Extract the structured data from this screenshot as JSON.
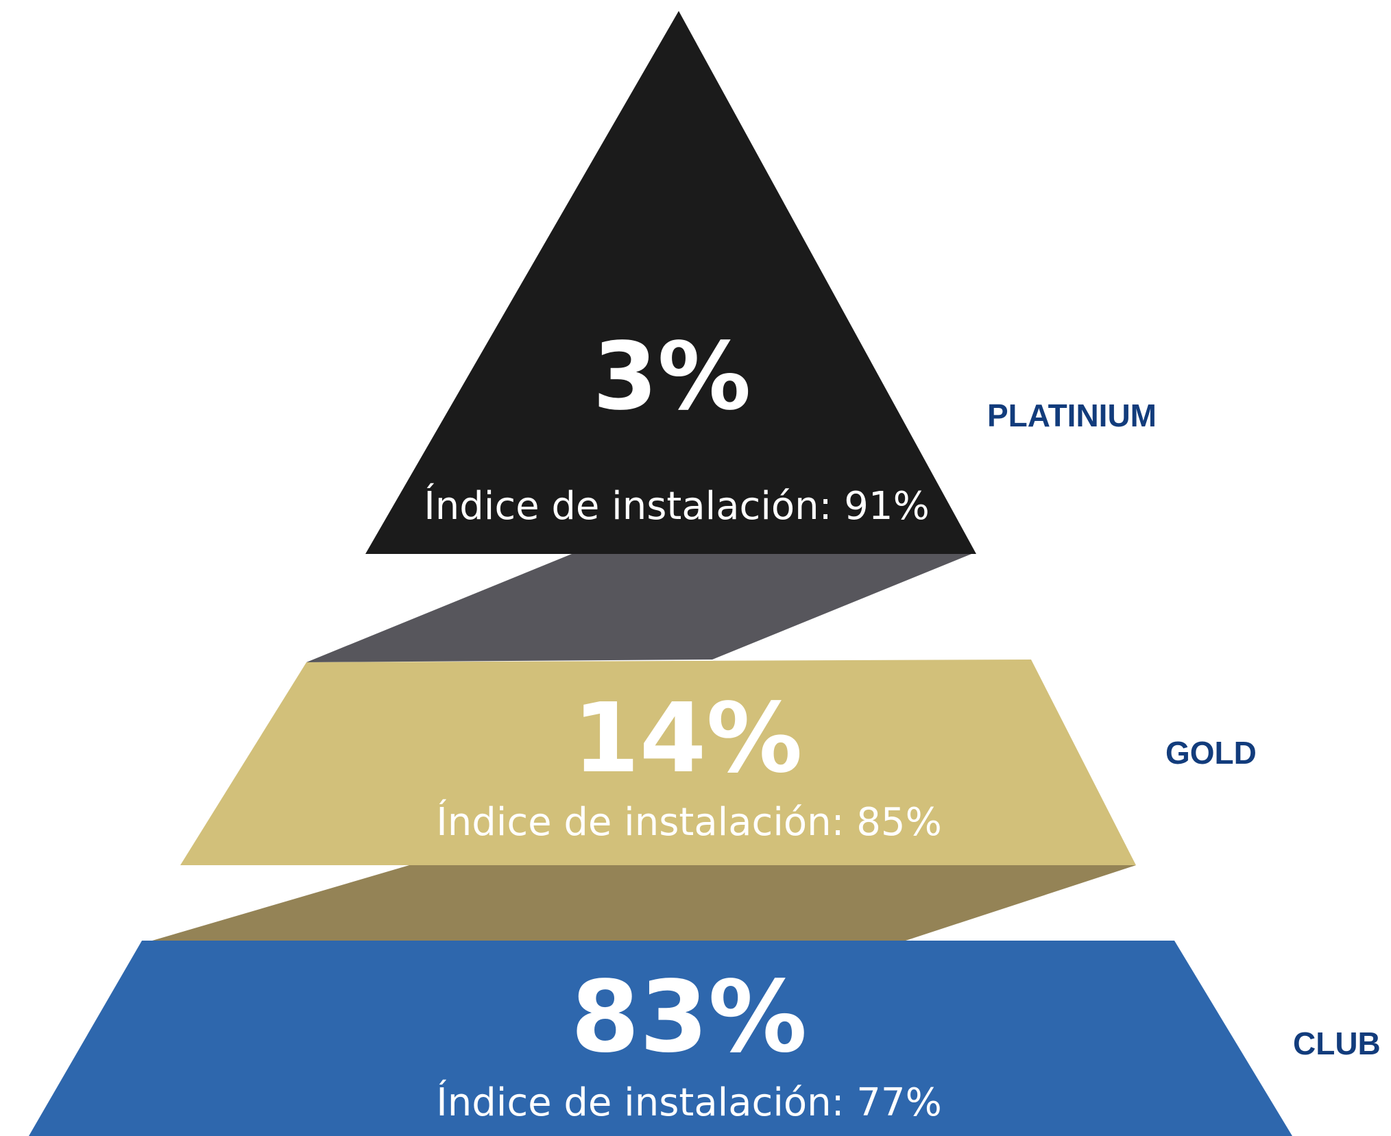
{
  "colors": {
    "platinium": "#1b1b1b",
    "platinium_side": "#57565c",
    "gold": "#d2c07a",
    "gold_side": "#948356",
    "club": "#2e67ad",
    "text_light": "#ffffff",
    "label": "#123c7c"
  },
  "tiers": [
    {
      "name": "PLATINIUM",
      "share": "3%",
      "install_rate": "Índice de instalación: 91%"
    },
    {
      "name": "GOLD",
      "share": "14%",
      "install_rate": "Índice de instalación: 85%"
    },
    {
      "name": "CLUB",
      "share": "83%",
      "install_rate": "Índice de instalación: 77%"
    }
  ]
}
